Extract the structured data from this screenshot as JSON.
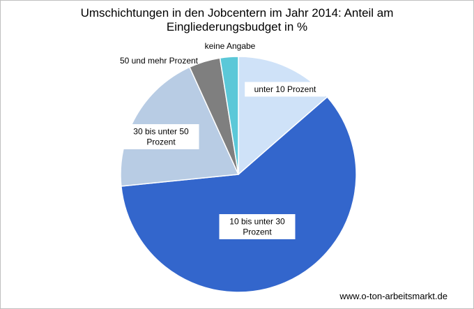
{
  "chart_data": {
    "type": "pie",
    "title_lines": [
      "Umschichtungen in den Jobcentern im Jahr 2014: Anteil am",
      "Eingliederungsbudget in %"
    ],
    "categories": [
      "unter 10 Prozent",
      "10 bis unter 30 Prozent",
      "30 bis unter 50 Prozent",
      "50 und mehr Prozent",
      "keine Angabe"
    ],
    "values": [
      13.6,
      59.8,
      19.8,
      4.3,
      2.5
    ],
    "colors": [
      "#cfe2f8",
      "#3366cc",
      "#b8cce4",
      "#7f7f7f",
      "#5bc8d8"
    ],
    "label_lines": [
      [
        "unter 10 Prozent"
      ],
      [
        "10 bis unter 30",
        "Prozent"
      ],
      [
        "30 bis unter 50",
        "Prozent"
      ],
      [
        "50 und mehr Prozent"
      ],
      [
        "keine Angabe"
      ]
    ],
    "start_angle_deg": 0,
    "direction": "clockwise",
    "legend": "none"
  },
  "source": "www.o-ton-arbeitsmarkt.de"
}
